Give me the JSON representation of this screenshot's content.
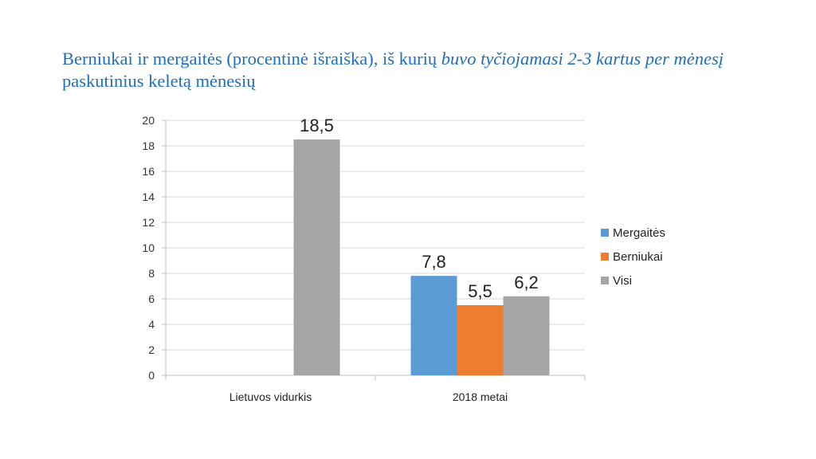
{
  "title": {
    "part1": "Berniukai ir mergaitės (procentinė išraiška), iš kurių ",
    "part2": "buvo tyčiojamasi 2-3 kartus per mėnesį",
    "part3": " paskutinius keletą mėnesių"
  },
  "chart_data": {
    "type": "bar",
    "categories": [
      "Lietuvos vidurkis",
      "2018 metai"
    ],
    "series": [
      {
        "name": "Mergaitės",
        "color": "#5b9bd5",
        "values": [
          null,
          7.8
        ],
        "labels": [
          "",
          "7,8"
        ]
      },
      {
        "name": "Berniukai",
        "color": "#ed7d31",
        "values": [
          null,
          5.5
        ],
        "labels": [
          "",
          "5,5"
        ]
      },
      {
        "name": "Visi",
        "color": "#a5a5a5",
        "values": [
          18.5,
          6.2
        ],
        "labels": [
          "18,5",
          "6,2"
        ]
      }
    ],
    "yticks": [
      "0",
      "2",
      "4",
      "6",
      "8",
      "10",
      "12",
      "14",
      "16",
      "18",
      "20"
    ],
    "ylim": [
      0,
      20
    ],
    "grid": true,
    "legend_position": "right"
  }
}
